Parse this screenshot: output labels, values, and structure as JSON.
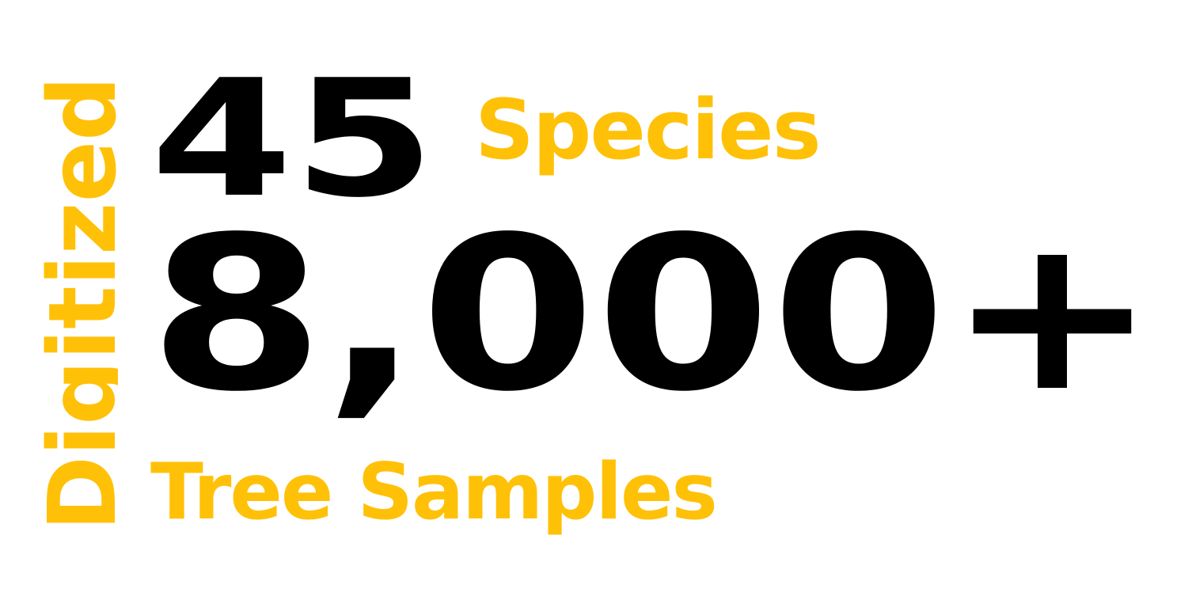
{
  "colors": {
    "accent": "#FFC107",
    "ink": "#000000",
    "background": "#FFFFFF"
  },
  "side_label": "Digitized",
  "species": {
    "count": "45",
    "label": "Species"
  },
  "samples": {
    "count": "8,000+",
    "label": "Tree Samples"
  }
}
